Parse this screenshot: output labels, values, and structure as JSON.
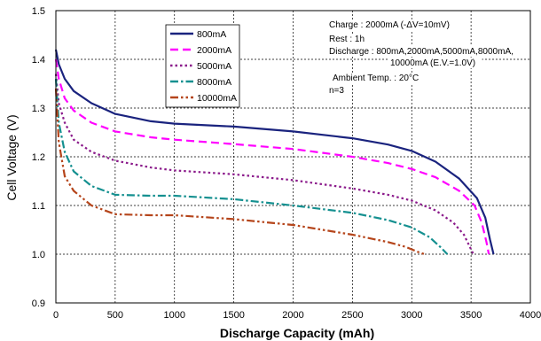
{
  "chart_data": {
    "type": "line",
    "xlabel": "Discharge Capacity (mAh)",
    "ylabel": "Cell Voltage (V)",
    "xlim": [
      0,
      4000
    ],
    "ylim": [
      0.9,
      1.5
    ],
    "x_ticks": [
      0,
      500,
      1000,
      1500,
      2000,
      2500,
      3000,
      3500,
      4000
    ],
    "y_ticks": [
      "0.9",
      "1.0",
      "1.1",
      "1.2",
      "1.3",
      "1.4",
      "1.5"
    ],
    "grid": "dashed",
    "legend_position": "top-left",
    "annotations": [
      "Charge : 2000mA (-ΔV=10mV)",
      "Rest : 1h",
      "Discharge :  800mA,2000mA,5000mA,8000mA,",
      "10000mA (E.V.=1.0V)",
      "Ambient Temp. : 20°C",
      "n=3"
    ],
    "series": [
      {
        "name": "800mA",
        "color": "#1a237e",
        "dash": "solid",
        "x": [
          0,
          25,
          75,
          150,
          300,
          500,
          800,
          1000,
          1500,
          2000,
          2500,
          2800,
          3000,
          3200,
          3400,
          3550,
          3620,
          3660,
          3690
        ],
        "y": [
          1.42,
          1.39,
          1.36,
          1.335,
          1.31,
          1.288,
          1.273,
          1.268,
          1.262,
          1.252,
          1.238,
          1.225,
          1.212,
          1.19,
          1.155,
          1.115,
          1.075,
          1.03,
          1.0
        ]
      },
      {
        "name": "2000mA",
        "color": "#ff00ff",
        "dash": "dash",
        "x": [
          0,
          25,
          75,
          150,
          300,
          500,
          800,
          1000,
          1500,
          2000,
          2500,
          2800,
          3000,
          3200,
          3400,
          3530,
          3590,
          3630,
          3650
        ],
        "y": [
          1.4,
          1.36,
          1.32,
          1.295,
          1.27,
          1.252,
          1.24,
          1.235,
          1.226,
          1.216,
          1.2,
          1.187,
          1.175,
          1.158,
          1.13,
          1.1,
          1.065,
          1.025,
          1.0
        ]
      },
      {
        "name": "5000mA",
        "color": "#8b1a8b",
        "dash": "dot",
        "x": [
          0,
          25,
          75,
          150,
          300,
          500,
          800,
          1000,
          1500,
          2000,
          2500,
          2800,
          3000,
          3200,
          3350,
          3440,
          3490,
          3520
        ],
        "y": [
          1.37,
          1.31,
          1.27,
          1.235,
          1.21,
          1.192,
          1.178,
          1.172,
          1.164,
          1.152,
          1.135,
          1.122,
          1.11,
          1.09,
          1.065,
          1.04,
          1.015,
          1.0
        ]
      },
      {
        "name": "8000mA",
        "color": "#159090",
        "dash": "dashdot",
        "x": [
          0,
          25,
          75,
          150,
          300,
          500,
          800,
          1000,
          1500,
          2000,
          2500,
          2800,
          3000,
          3150,
          3240,
          3300
        ],
        "y": [
          1.36,
          1.27,
          1.21,
          1.17,
          1.14,
          1.122,
          1.12,
          1.12,
          1.113,
          1.1,
          1.085,
          1.07,
          1.055,
          1.035,
          1.015,
          1.0
        ]
      },
      {
        "name": "10000mA",
        "color": "#b5451b",
        "dash": "dashdotdot",
        "x": [
          0,
          25,
          75,
          150,
          300,
          500,
          800,
          1000,
          1500,
          2000,
          2500,
          2800,
          2950,
          3050,
          3110
        ],
        "y": [
          1.34,
          1.23,
          1.16,
          1.13,
          1.1,
          1.082,
          1.08,
          1.08,
          1.072,
          1.06,
          1.04,
          1.025,
          1.015,
          1.005,
          1.0
        ]
      }
    ]
  }
}
